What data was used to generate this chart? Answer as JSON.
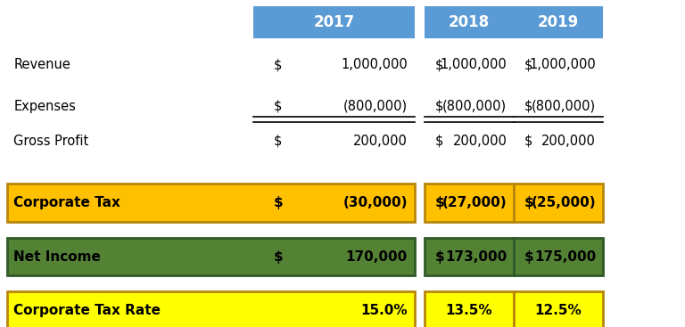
{
  "header_bg": "#5B9BD5",
  "header_text_color": "#FFFFFF",
  "orange_bg": "#FFC000",
  "orange_text_color": "#000000",
  "green_bg": "#548235",
  "green_text_color": "#000000",
  "yellow_bg": "#FFFF00",
  "yellow_text_color": "#000000",
  "white_bg": "#FFFFFF",
  "black_text": "#000000",
  "years": [
    "2017",
    "2018",
    "2019"
  ],
  "rows": [
    {
      "label": "Revenue",
      "vals": [
        "$ 1,000,000",
        "$ 1,000,000",
        "$ 1,000,000"
      ],
      "style": "normal",
      "underline": false
    },
    {
      "label": "Expenses",
      "vals": [
        "$  (800,000)",
        "$  (800,000)",
        "$  (800,000)"
      ],
      "style": "normal",
      "underline": true
    },
    {
      "label": "Gross Profit",
      "vals": [
        "$    200,000",
        "$    200,000",
        "$    200,000"
      ],
      "style": "normal",
      "underline": false
    }
  ],
  "corp_tax_label": "Corporate Tax",
  "corp_tax_vals": [
    "$   (30,000)",
    "$   (27,000)",
    "$   (25,000)"
  ],
  "net_income_label": "Net Income",
  "net_income_vals": [
    "$  170,000",
    "$  173,000",
    "$  175,000"
  ],
  "tax_rate_label": "Corporate Tax Rate",
  "tax_rate_vals": [
    "15.0%",
    "13.5%",
    "12.5%"
  ],
  "figsize": [
    7.68,
    3.67
  ],
  "dpi": 100
}
